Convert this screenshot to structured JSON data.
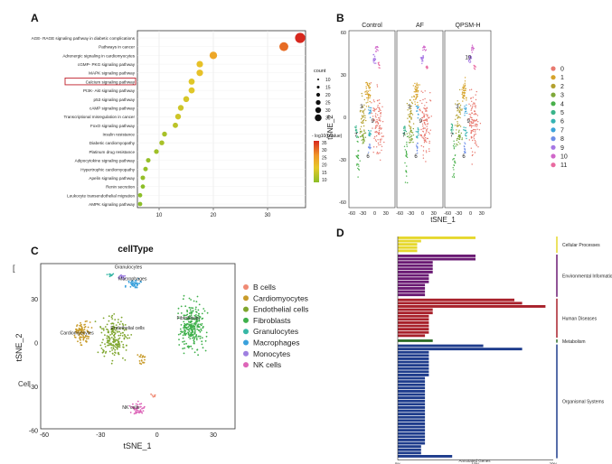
{
  "panel_labels": {
    "a": "A",
    "b": "B",
    "c": "C",
    "d": "D"
  },
  "chart_data": [
    {
      "id": "A",
      "type": "scatter",
      "title": "KEGG pathway enrichment (dot plot)",
      "xlabel": "",
      "ylabel": "",
      "xlim": [
        6,
        37
      ],
      "xticks": [
        10,
        20,
        30
      ],
      "pathways": [
        "AGE- RAGE signaling pathway in diabetic complications",
        "Pathways in cancer",
        "Adrenergic signaling in cardiomyocytes",
        "cGMP- PKG signaling pathway",
        "MAPK signaling pathway",
        "Calcium signaling pathway",
        "PI3K- Akt signaling pathway",
        "p53 signaling pathway",
        "cAMP signaling pathway",
        "Transcriptional misregulation in cancer",
        "FoxO signaling pathway",
        "Insulin resistance",
        "Diabetic cardiomyopathy",
        "Platinum drug resistance",
        "Adipocytokine signaling pathway",
        "Hypertrophic cardiomyopathy",
        "Apelin signaling pathway",
        "Renin secretion",
        "Leukocyte transendothelial migration",
        "AMPK signaling pathway"
      ],
      "x": [
        36,
        33,
        20,
        17.5,
        17.5,
        16,
        16,
        15,
        14,
        13.5,
        13,
        11,
        10.5,
        9.5,
        8,
        7.5,
        7,
        7,
        6.5,
        6.5
      ],
      "neglog10p": [
        38,
        32,
        25,
        20,
        20,
        18,
        18,
        17,
        16,
        16,
        14,
        12,
        12,
        11,
        10,
        10,
        10,
        9,
        9,
        9
      ],
      "highlight": "Calcium signaling pathway",
      "size_legend": {
        "title": "count",
        "values": [
          "10",
          "15",
          "20",
          "25",
          "30",
          "35"
        ]
      },
      "color_legend": {
        "title": "- log10(pvalue)",
        "ticks": [
          "35",
          "30",
          "25",
          "20",
          "15",
          "10"
        ]
      }
    },
    {
      "id": "B",
      "type": "scatter",
      "facets": [
        "Control",
        "AF",
        "QPSM-H"
      ],
      "xlabel": "tSNE_1",
      "ylabel": "tSNE_2",
      "xticks": [
        "-60",
        "-30",
        "0",
        "30"
      ],
      "yticks": [
        "60",
        "30",
        "0",
        "-30",
        "-60"
      ],
      "cluster_labels_shown": [
        "3",
        "7",
        "6",
        "9",
        "10"
      ],
      "legend": [
        "0",
        "1",
        "2",
        "3",
        "4",
        "5",
        "6",
        "7",
        "8",
        "9",
        "10",
        "11"
      ]
    },
    {
      "id": "C",
      "type": "scatter",
      "title": "cellType",
      "xlabel": "tSNE_1",
      "ylabel": "tSNE_2",
      "xticks": [
        "-60",
        "-30",
        "0",
        "30"
      ],
      "yticks": [
        "30",
        "0",
        "-30",
        "-60"
      ],
      "side_label": "Cell",
      "corner_mark": "[",
      "legend": [
        "B cells",
        "Cardiomyocytes",
        "Endothelial cells",
        "Fibroblasts",
        "Granulocytes",
        "Macrophages",
        "Monocytes",
        "NK cells"
      ],
      "cluster_labels_shown": [
        "Granulocytes",
        "Macrophages",
        "Endothelial cells",
        "Cardiomyocytes",
        "Fibroblasts",
        "NK cells"
      ]
    },
    {
      "id": "D",
      "type": "bar",
      "orientation": "horizontal",
      "xlabel": "Annotated Genes",
      "xticks": [
        "0%",
        "10%",
        "20%"
      ],
      "categories": [
        {
          "name": "Cellular Processes",
          "color": "#e6d82e",
          "values": [
            10,
            3,
            2.5,
            2.5,
            2.5
          ]
        },
        {
          "name": "Environmental Information",
          "color": "#6a1a73",
          "values": [
            10,
            10,
            4.5,
            4.5,
            4.5,
            4.5,
            4,
            4,
            4,
            3.5,
            3.5,
            3.5,
            3.5
          ]
        },
        {
          "name": "Human Diseases",
          "color": "#a8202a",
          "values": [
            15,
            16,
            19,
            4.5,
            4.5,
            4,
            4,
            4,
            4,
            4,
            4,
            3.5
          ]
        },
        {
          "name": "Metabolism",
          "color": "#2f6e2a",
          "values": [
            4.5
          ]
        },
        {
          "name": "Organismal Systems",
          "color": "#1e3c8c",
          "values": [
            11,
            16,
            4,
            4,
            4,
            4,
            4,
            4,
            4,
            4,
            3.5,
            3.5,
            3.5,
            3.5,
            3.5,
            3.5,
            3.5,
            3.5,
            3.5,
            3.5,
            3.5,
            3.5,
            3.5,
            3.5,
            3.5,
            3.5,
            3.5,
            3.5,
            3.5,
            3.5,
            3.5,
            3,
            3,
            3,
            7
          ]
        }
      ]
    }
  ],
  "colors": {
    "clusters": [
      "#e8796f",
      "#d6a32a",
      "#b3a02e",
      "#7fa83a",
      "#48b04a",
      "#39b48a",
      "#35b3b3",
      "#3ba3d8",
      "#6d8ee8",
      "#a677e4",
      "#d067c9",
      "#e96aa0"
    ],
    "celltypes": [
      "#f08a74",
      "#c89b2a",
      "#7fa62e",
      "#3fb04b",
      "#37b7a6",
      "#3aa1dc",
      "#9e7fe0",
      "#dd65b8"
    ]
  }
}
